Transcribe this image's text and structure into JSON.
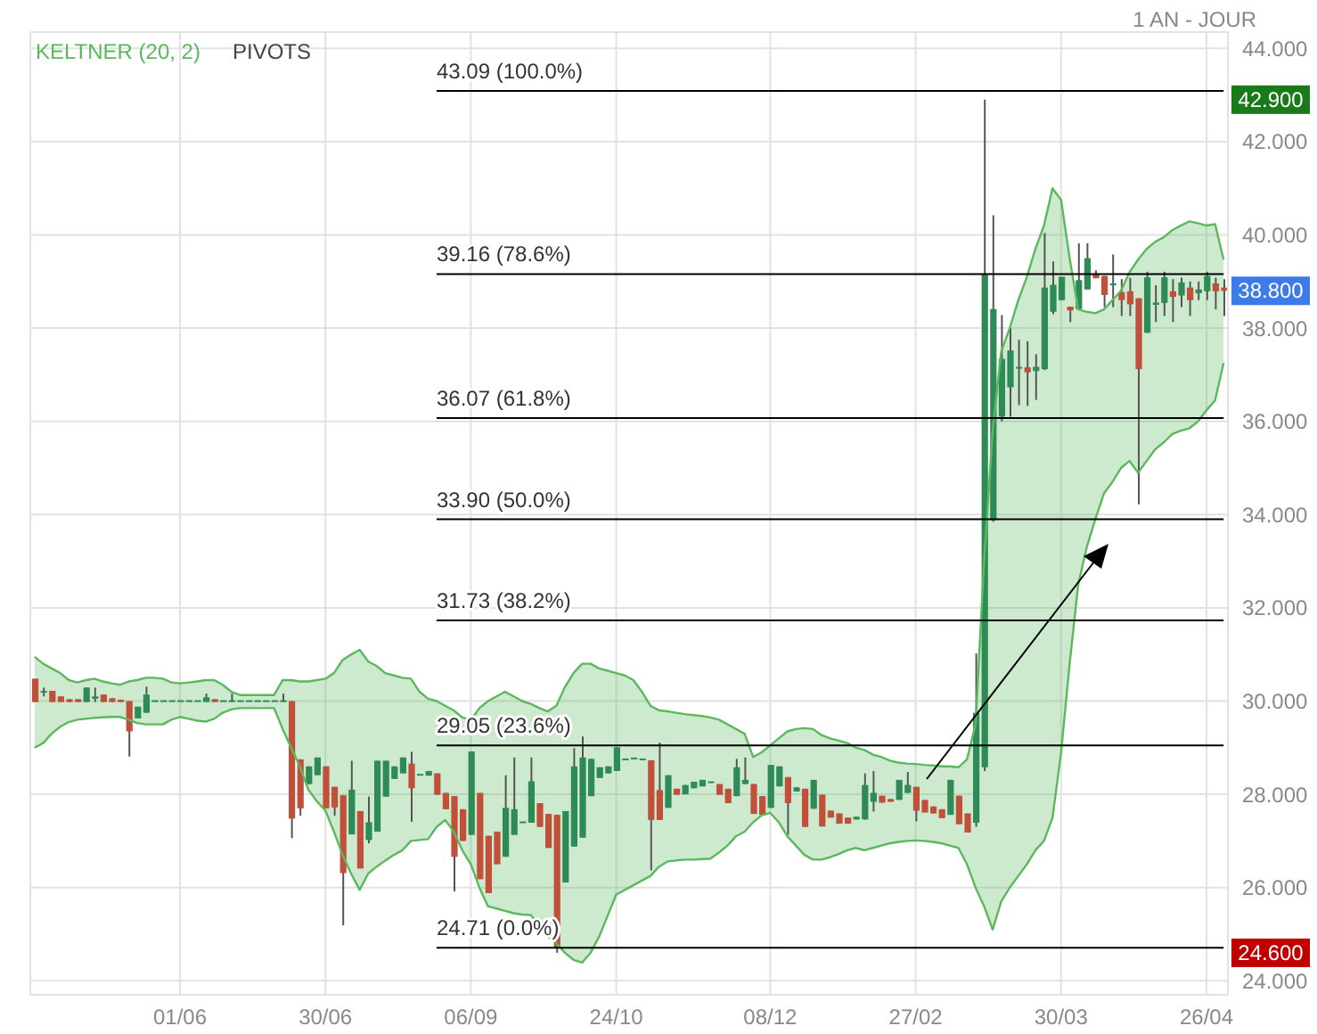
{
  "chart_data": {
    "type": "candlestick",
    "subtitle": "1 AN - JOUR",
    "grid": true,
    "legend": "top left",
    "colors": [
      "#c0503a",
      "#2e8b57",
      "#c0503a",
      "#c0503a",
      "#c0503a",
      "#c0503a",
      "#2e8b57",
      "#2e8b57",
      "#c0503a",
      "#c0503a",
      "#c0503a",
      "#c0503a",
      "#2e8b57",
      "#2e8b57",
      "#2e8b57",
      "#2e8b57",
      "#2e8b57",
      "#2e8b57",
      "#2e8b57",
      "#2e8b57",
      "#2e8b57",
      "#c0503a",
      "#2e8b57",
      "#2e8b57",
      "#2e8b57",
      "#2e8b57",
      "#2e8b57",
      "#2e8b57",
      "#2e8b57",
      "#2e8b57",
      "#c0503a",
      "#c0503a",
      "#2e8b57",
      "#2e8b57",
      "#c0503a",
      "#c0503a",
      "#c0503a",
      "#2e8b57",
      "#c0503a",
      "#2e8b57",
      "#2e8b57",
      "#2e8b57",
      "#2e8b57",
      "#2e8b57",
      "#c0503a",
      "#2e8b57",
      "#2e8b57",
      "#c0503a",
      "#c0503a",
      "#c0503a",
      "#c0503a",
      "#2e8b57",
      "#c0503a",
      "#c0503a",
      "#c0503a",
      "#2e8b57",
      "#2e8b57",
      "#2e8b57",
      "#2e8b57",
      "#c0503a",
      "#c0503a",
      "#c0503a",
      "#2e8b57",
      "#2e8b57",
      "#2e8b57",
      "#2e8b57",
      "#2e8b57",
      "#2e8b57",
      "#2e8b57",
      "#2e8b57",
      "#2e8b57",
      "#2e8b57",
      "#c0503a",
      "#c0503a",
      "#2e8b57",
      "#c0503a",
      "#2e8b57",
      "#2e8b57",
      "#2e8b57",
      "#2e8b57",
      "#c0503a",
      "#c0503a",
      "#2e8b57",
      "#2e8b57",
      "#c0503a",
      "#c0503a",
      "#2e8b57",
      "#2e8b57",
      "#c0503a",
      "#2e8b57",
      "#c0503a",
      "#2e8b57",
      "#c0503a",
      "#c0503a",
      "#c0503a",
      "#c0503a",
      "#2e8b57",
      "#2e8b57",
      "#2e8b57",
      "#c0503a",
      "#c0503a",
      "#2e8b57",
      "#2e8b57",
      "#c0503a",
      "#c0503a",
      "#c0503a",
      "#c0503a",
      "#2e8b57",
      "#c0503a",
      "#c0503a",
      "#2e8b57",
      "#2e8b57",
      "#2e8b57",
      "#2e8b57",
      "#2e8b57",
      "#2e8b57",
      "#c0503a",
      "#2e8b57",
      "#2e8b57",
      "#2e8b57",
      "#2e8b57",
      "#c0503a",
      "#2e8b57",
      "#2e8b57",
      "#c0503a",
      "#c0503a",
      "#2e8b57",
      "#c0503a",
      "#c0503a",
      "#c0503a",
      "#2e8b57",
      "#2e8b57",
      "#2e8b57",
      "#c0503a",
      "#2e8b57",
      "#c0503a",
      "#2e8b57",
      "#2e8b57",
      "#c0503a",
      "#c0503a"
    ],
    "categories": [
      null,
      null,
      null,
      null,
      null,
      null,
      null,
      null,
      null,
      null,
      null,
      null,
      null,
      null,
      null,
      null,
      null,
      "01/06",
      null,
      null,
      null,
      null,
      null,
      null,
      null,
      null,
      null,
      null,
      null,
      null,
      null,
      null,
      null,
      null,
      "30/06",
      null,
      null,
      null,
      null,
      null,
      null,
      null,
      null,
      null,
      null,
      null,
      null,
      null,
      null,
      null,
      null,
      "06/09",
      null,
      null,
      null,
      null,
      null,
      null,
      null,
      null,
      null,
      null,
      null,
      null,
      null,
      null,
      null,
      null,
      "24/10",
      null,
      null,
      null,
      null,
      null,
      null,
      null,
      null,
      null,
      null,
      null,
      null,
      null,
      null,
      null,
      null,
      null,
      "08/12",
      null,
      null,
      null,
      null,
      null,
      null,
      null,
      null,
      null,
      null,
      null,
      null,
      null,
      null,
      null,
      null,
      "27/02",
      null,
      null,
      null,
      null,
      null,
      null,
      null,
      null,
      null,
      null,
      null,
      null,
      null,
      null,
      null,
      null,
      "30/03",
      null,
      null,
      null,
      null,
      null,
      null,
      null,
      null,
      null,
      null,
      null,
      null,
      null,
      null,
      null,
      null,
      "26/04",
      null,
      null
    ],
    "ohlc": [
      [
        30.48,
        30.48,
        29.98,
        29.98
      ],
      [
        30.18,
        30.29,
        30.1,
        30.2
      ],
      [
        30.22,
        30.22,
        29.98,
        29.98
      ],
      [
        30.1,
        30.1,
        29.98,
        29.98
      ],
      [
        30.04,
        30.04,
        29.98,
        29.98
      ],
      [
        30.04,
        30.04,
        29.98,
        29.98
      ],
      [
        29.98,
        30.29,
        29.98,
        30.29
      ],
      [
        30.05,
        30.29,
        29.98,
        30.1
      ],
      [
        30.14,
        30.14,
        29.98,
        29.98
      ],
      [
        30.06,
        30.06,
        29.98,
        29.98
      ],
      [
        30.03,
        30.03,
        29.98,
        29.98
      ],
      [
        30.0,
        30.0,
        28.81,
        29.35
      ],
      [
        29.63,
        29.88,
        29.63,
        29.88
      ],
      [
        29.75,
        30.31,
        29.75,
        30.14
      ],
      [
        29.98,
        29.98,
        29.98,
        29.98
      ],
      [
        29.98,
        29.98,
        29.98,
        29.98
      ],
      [
        29.98,
        29.98,
        29.98,
        29.98
      ],
      [
        29.98,
        29.98,
        29.98,
        29.98
      ],
      [
        29.98,
        29.98,
        29.98,
        29.98
      ],
      [
        29.98,
        29.98,
        29.98,
        29.98
      ],
      [
        29.98,
        30.16,
        29.98,
        30.08
      ],
      [
        30.04,
        30.04,
        29.98,
        29.98
      ],
      [
        29.98,
        29.98,
        29.98,
        29.98
      ],
      [
        29.98,
        30.16,
        29.98,
        30.0
      ],
      [
        29.98,
        29.98,
        29.98,
        29.98
      ],
      [
        29.98,
        29.98,
        29.98,
        29.98
      ],
      [
        29.98,
        29.98,
        29.98,
        29.98
      ],
      [
        29.98,
        29.98,
        29.98,
        29.98
      ],
      [
        29.98,
        29.98,
        29.98,
        29.98
      ],
      [
        29.98,
        30.16,
        29.98,
        29.99
      ],
      [
        30.0,
        30.0,
        27.06,
        27.48
      ],
      [
        28.75,
        28.75,
        27.54,
        27.7
      ],
      [
        28.22,
        28.6,
        28.22,
        28.6
      ],
      [
        28.41,
        28.79,
        28.41,
        28.79
      ],
      [
        28.6,
        28.6,
        27.7,
        27.7
      ],
      [
        28.16,
        28.16,
        27.54,
        27.72
      ],
      [
        27.98,
        27.98,
        25.19,
        26.31
      ],
      [
        27.14,
        28.72,
        27.14,
        28.1
      ],
      [
        27.64,
        27.64,
        26.41,
        26.41
      ],
      [
        27.02,
        27.95,
        26.95,
        27.4
      ],
      [
        27.2,
        28.72,
        27.2,
        28.72
      ],
      [
        27.95,
        28.72,
        27.95,
        28.72
      ],
      [
        28.33,
        28.6,
        28.33,
        28.6
      ],
      [
        28.45,
        28.79,
        28.45,
        28.79
      ],
      [
        28.66,
        28.91,
        27.41,
        28.13
      ],
      [
        28.4,
        28.4,
        28.4,
        28.4
      ],
      [
        28.4,
        28.5,
        28.4,
        28.5
      ],
      [
        28.45,
        28.45,
        27.99,
        27.99
      ],
      [
        28.03,
        28.03,
        27.68,
        27.68
      ],
      [
        27.96,
        27.96,
        25.92,
        26.66
      ],
      [
        27.68,
        27.68,
        27.0,
        27.0
      ],
      [
        27.13,
        28.92,
        27.13,
        28.92
      ],
      [
        28.03,
        28.03,
        26.18,
        26.18
      ],
      [
        27.11,
        27.11,
        25.88,
        25.88
      ],
      [
        27.2,
        27.2,
        26.5,
        26.5
      ],
      [
        26.66,
        28.41,
        26.66,
        27.71
      ],
      [
        27.13,
        28.79,
        27.13,
        27.68
      ],
      [
        27.38,
        27.38,
        27.38,
        27.38
      ],
      [
        27.39,
        28.79,
        27.39,
        28.28
      ],
      [
        27.81,
        27.81,
        27.3,
        27.3
      ],
      [
        27.58,
        27.58,
        26.85,
        26.85
      ],
      [
        27.56,
        27.56,
        24.6,
        24.71
      ],
      [
        26.11,
        27.64,
        26.11,
        27.64
      ],
      [
        26.88,
        28.99,
        26.88,
        28.6
      ],
      [
        27.07,
        29.24,
        27.07,
        28.79
      ],
      [
        27.96,
        28.76,
        27.96,
        28.76
      ],
      [
        28.35,
        28.58,
        28.35,
        28.58
      ],
      [
        28.45,
        28.6,
        28.45,
        28.6
      ],
      [
        28.5,
        29.01,
        28.5,
        29.01
      ],
      [
        28.73,
        28.73,
        28.73,
        28.73
      ],
      [
        28.75,
        28.75,
        28.75,
        28.75
      ],
      [
        28.73,
        28.73,
        28.73,
        28.73
      ],
      [
        28.73,
        28.73,
        26.37,
        27.45
      ],
      [
        28.09,
        29.11,
        27.45,
        27.45
      ],
      [
        27.71,
        28.41,
        27.71,
        28.41
      ],
      [
        28.12,
        28.12,
        27.99,
        27.99
      ],
      [
        28.0,
        28.2,
        28.0,
        28.2
      ],
      [
        28.13,
        28.27,
        28.13,
        28.27
      ],
      [
        28.17,
        28.31,
        28.17,
        28.31
      ],
      [
        28.24,
        28.24,
        28.24,
        28.24
      ],
      [
        28.22,
        28.22,
        27.99,
        27.99
      ],
      [
        28.12,
        28.12,
        27.81,
        27.81
      ],
      [
        27.96,
        28.76,
        27.96,
        28.58
      ],
      [
        28.22,
        28.79,
        28.22,
        28.31
      ],
      [
        28.22,
        28.22,
        27.58,
        27.58
      ],
      [
        27.96,
        27.96,
        27.56,
        27.56
      ],
      [
        27.71,
        28.63,
        27.71,
        28.63
      ],
      [
        28.17,
        28.6,
        28.17,
        28.6
      ],
      [
        28.37,
        28.37,
        27.13,
        27.81
      ],
      [
        28.06,
        28.15,
        28.06,
        28.15
      ],
      [
        28.12,
        28.12,
        27.3,
        27.3
      ],
      [
        27.69,
        28.31,
        27.69,
        28.31
      ],
      [
        27.99,
        27.99,
        27.31,
        27.31
      ],
      [
        27.65,
        27.65,
        27.5,
        27.5
      ],
      [
        27.59,
        27.59,
        27.37,
        27.37
      ],
      [
        27.5,
        27.5,
        27.37,
        27.37
      ],
      [
        27.46,
        27.52,
        27.46,
        27.52
      ],
      [
        27.46,
        28.45,
        27.46,
        28.2
      ],
      [
        27.84,
        28.5,
        27.63,
        28.03
      ],
      [
        27.97,
        27.97,
        27.82,
        27.82
      ],
      [
        27.9,
        27.9,
        27.84,
        27.84
      ],
      [
        27.88,
        28.31,
        27.88,
        28.31
      ],
      [
        28.03,
        28.48,
        28.03,
        28.2
      ],
      [
        28.16,
        28.16,
        27.42,
        27.65
      ],
      [
        27.88,
        27.88,
        27.61,
        27.61
      ],
      [
        27.74,
        27.74,
        27.59,
        27.59
      ],
      [
        27.68,
        27.68,
        27.49,
        27.49
      ],
      [
        27.56,
        28.31,
        27.56,
        28.31
      ],
      [
        27.97,
        27.97,
        27.36,
        27.36
      ],
      [
        27.59,
        27.59,
        27.18,
        27.18
      ],
      [
        27.39,
        31.02,
        27.3,
        29.75
      ],
      [
        28.58,
        42.9,
        28.5,
        39.16
      ],
      [
        33.88,
        40.42,
        33.85,
        38.41
      ],
      [
        36.1,
        38.28,
        36.0,
        37.34
      ],
      [
        36.73,
        38.0,
        36.1,
        37.52
      ],
      [
        37.13,
        37.75,
        36.35,
        37.16
      ],
      [
        37.16,
        37.72,
        36.33,
        37.05
      ],
      [
        37.08,
        37.44,
        36.46,
        37.17
      ],
      [
        37.12,
        40.04,
        37.1,
        38.87
      ],
      [
        38.35,
        39.43,
        38.3,
        38.93
      ],
      [
        38.6,
        39.1,
        38.6,
        39.1
      ],
      [
        38.46,
        38.46,
        38.13,
        38.38
      ],
      [
        38.41,
        39.82,
        38.41,
        39.03
      ],
      [
        38.83,
        39.82,
        38.83,
        39.5
      ],
      [
        39.17,
        39.24,
        39.07,
        39.07
      ],
      [
        39.12,
        39.12,
        38.45,
        38.71
      ],
      [
        38.92,
        39.58,
        38.45,
        38.93
      ],
      [
        38.77,
        39.05,
        38.26,
        38.6
      ],
      [
        38.79,
        39.08,
        38.26,
        38.51
      ],
      [
        38.64,
        38.64,
        34.22,
        37.12
      ],
      [
        37.9,
        39.21,
        37.9,
        39.09
      ],
      [
        38.5,
        38.92,
        38.13,
        38.55
      ],
      [
        38.54,
        39.21,
        38.26,
        39.09
      ],
      [
        38.79,
        39.05,
        38.13,
        38.67
      ],
      [
        38.7,
        39.08,
        38.45,
        38.98
      ],
      [
        38.87,
        39.0,
        38.26,
        38.6
      ],
      [
        38.75,
        39.0,
        38.6,
        38.83
      ],
      [
        38.79,
        39.21,
        38.6,
        39.12
      ],
      [
        38.96,
        39.08,
        38.4,
        38.79
      ],
      [
        38.87,
        39.05,
        38.26,
        38.8
      ]
    ],
    "series": [
      {
        "name": "KELTNER (20, 2)",
        "type": "line",
        "color": "#5cb85c",
        "values": [
          30.95,
          30.8,
          30.7,
          30.6,
          30.45,
          30.4,
          30.45,
          30.48,
          30.42,
          30.38,
          30.35,
          30.42,
          30.45,
          30.5,
          30.5,
          30.48,
          30.4,
          30.38,
          30.4,
          30.42,
          30.45,
          30.45,
          30.35,
          30.2,
          30.13,
          30.13,
          30.13,
          30.13,
          30.13,
          30.45,
          30.45,
          30.42,
          30.42,
          30.45,
          30.48,
          30.6,
          30.88,
          31.0,
          31.1,
          30.85,
          30.75,
          30.6,
          30.55,
          30.5,
          30.48,
          30.2,
          30.05,
          30.0,
          29.9,
          29.8,
          29.65,
          29.6,
          29.85,
          30.0,
          30.1,
          30.2,
          30.1,
          30.0,
          29.94,
          29.85,
          29.78,
          29.9,
          30.3,
          30.6,
          30.8,
          30.8,
          30.7,
          30.65,
          30.6,
          30.55,
          30.45,
          30.2,
          29.9,
          29.8,
          29.78,
          29.75,
          29.72,
          29.7,
          29.68,
          29.65,
          29.6,
          29.5,
          29.4,
          29.3,
          28.8,
          28.9,
          29.05,
          29.2,
          29.35,
          29.4,
          29.42,
          29.4,
          29.27,
          29.2,
          29.15,
          29.1,
          29.0,
          28.95,
          28.85,
          28.8,
          28.72,
          28.68,
          28.66,
          28.65,
          28.63,
          28.62,
          28.6,
          28.6,
          28.58,
          28.75,
          29.5,
          33.0,
          35.8,
          37.5,
          38.0,
          38.6,
          39.1,
          39.7,
          40.2,
          41.0,
          40.75,
          39.5,
          38.4,
          38.35,
          38.32,
          38.4,
          38.6,
          38.8,
          39.2,
          39.47,
          39.7,
          39.85,
          39.95,
          40.1,
          40.2,
          40.29,
          40.25,
          40.2,
          40.23,
          39.47
        ],
        "upper": [
          30.95,
          30.8,
          30.7,
          30.6,
          30.45,
          30.4,
          30.45,
          30.48,
          30.42,
          30.38,
          30.35,
          30.42,
          30.45,
          30.5,
          30.5,
          30.48,
          30.4,
          30.38,
          30.4,
          30.42,
          30.45,
          30.45,
          30.35,
          30.2,
          30.13,
          30.13,
          30.13,
          30.13,
          30.13,
          30.45,
          30.45,
          30.42,
          30.42,
          30.45,
          30.48,
          30.6,
          30.88,
          31.0,
          31.1,
          30.85,
          30.75,
          30.6,
          30.55,
          30.5,
          30.48,
          30.2,
          30.05,
          30.0,
          29.9,
          29.8,
          29.65,
          29.6,
          29.85,
          30.0,
          30.1,
          30.2,
          30.1,
          30.0,
          29.94,
          29.85,
          29.78,
          29.9,
          30.3,
          30.6,
          30.8,
          30.8,
          30.7,
          30.65,
          30.6,
          30.55,
          30.45,
          30.2,
          29.9,
          29.8,
          29.78,
          29.75,
          29.72,
          29.7,
          29.68,
          29.65,
          29.6,
          29.5,
          29.4,
          29.3,
          28.8,
          28.9,
          29.05,
          29.2,
          29.35,
          29.4,
          29.42,
          29.4,
          29.27,
          29.2,
          29.15,
          29.1,
          29.0,
          28.95,
          28.85,
          28.8,
          28.72,
          28.68,
          28.66,
          28.65,
          28.63,
          28.62,
          28.6,
          28.6,
          28.58,
          28.75,
          29.5,
          33.0,
          35.8,
          37.5,
          38.0,
          38.6,
          39.1,
          39.7,
          40.2,
          41.0,
          40.75,
          39.5,
          38.4,
          38.35,
          38.32,
          38.4,
          38.6,
          38.8,
          39.2,
          39.47,
          39.7,
          39.85,
          39.95,
          40.1,
          40.2,
          40.29,
          40.25,
          40.2,
          40.23,
          39.47
        ],
        "lower": [
          29.0,
          29.1,
          29.3,
          29.45,
          29.55,
          29.6,
          29.62,
          29.64,
          29.65,
          29.66,
          29.66,
          29.6,
          29.53,
          29.5,
          29.5,
          29.5,
          29.6,
          29.66,
          29.62,
          29.58,
          29.56,
          29.62,
          29.75,
          29.82,
          29.85,
          29.85,
          29.85,
          29.85,
          29.85,
          29.4,
          29.0,
          28.6,
          28.1,
          27.85,
          27.65,
          27.2,
          26.7,
          26.3,
          25.95,
          26.3,
          26.45,
          26.58,
          26.7,
          26.8,
          27.0,
          27.02,
          27.04,
          27.3,
          27.45,
          27.2,
          26.8,
          26.5,
          26.0,
          25.6,
          25.55,
          25.5,
          25.45,
          25.42,
          25.41,
          25.2,
          24.95,
          24.8,
          24.6,
          24.45,
          24.39,
          24.6,
          24.95,
          25.4,
          25.85,
          25.95,
          26.05,
          26.15,
          26.25,
          26.45,
          26.56,
          26.58,
          26.6,
          26.6,
          26.61,
          26.62,
          26.75,
          26.9,
          27.1,
          27.2,
          27.4,
          27.55,
          27.6,
          27.4,
          27.1,
          26.9,
          26.7,
          26.6,
          26.6,
          26.65,
          26.72,
          26.8,
          26.85,
          26.8,
          26.85,
          26.9,
          26.95,
          26.98,
          27.0,
          27.01,
          27.0,
          26.98,
          26.95,
          26.9,
          26.85,
          26.5,
          26.0,
          25.6,
          25.1,
          25.7,
          26.0,
          26.25,
          26.5,
          26.8,
          27.0,
          27.5,
          28.9,
          30.8,
          32.5,
          33.3,
          33.9,
          34.45,
          34.7,
          35.0,
          35.15,
          34.9,
          35.15,
          35.4,
          35.55,
          35.73,
          35.8,
          35.85,
          36.0,
          36.24,
          36.45,
          37.25
        ]
      },
      {
        "type": "line",
        "color": "#5cb85c",
        "values": [
          29.0,
          29.1,
          29.3,
          29.45,
          29.55,
          29.6,
          29.62,
          29.64,
          29.65,
          29.66,
          29.66,
          29.6,
          29.53,
          29.5,
          29.5,
          29.5,
          29.6,
          29.66,
          29.62,
          29.58,
          29.56,
          29.62,
          29.75,
          29.82,
          29.85,
          29.85,
          29.85,
          29.85,
          29.85,
          29.4,
          29.0,
          28.6,
          28.1,
          27.85,
          27.65,
          27.2,
          26.7,
          26.3,
          25.95,
          26.3,
          26.45,
          26.58,
          26.7,
          26.8,
          27.0,
          27.02,
          27.04,
          27.3,
          27.45,
          27.2,
          26.8,
          26.5,
          26.0,
          25.6,
          25.55,
          25.5,
          25.45,
          25.42,
          25.41,
          25.2,
          24.95,
          24.8,
          24.6,
          24.45,
          24.39,
          24.6,
          24.95,
          25.4,
          25.85,
          25.95,
          26.05,
          26.15,
          26.25,
          26.45,
          26.56,
          26.58,
          26.6,
          26.6,
          26.61,
          26.62,
          26.75,
          26.9,
          27.1,
          27.2,
          27.4,
          27.55,
          27.6,
          27.4,
          27.1,
          26.9,
          26.7,
          26.6,
          26.6,
          26.65,
          26.72,
          26.8,
          26.85,
          26.8,
          26.85,
          26.9,
          26.95,
          26.98,
          27.0,
          27.01,
          27.0,
          26.98,
          26.95,
          26.9,
          26.85,
          26.5,
          26.0,
          25.6,
          25.1,
          25.7,
          26.0,
          26.25,
          26.5,
          26.8,
          27.0,
          27.5,
          28.9,
          30.8,
          32.5,
          33.3,
          33.9,
          34.45,
          34.7,
          35.0,
          35.15,
          34.9,
          35.15,
          35.4,
          35.55,
          35.73,
          35.8,
          35.85,
          36.0,
          36.24,
          36.45,
          37.25
        ]
      }
    ],
    "ylim": [
      23.7,
      44.35
    ],
    "yticks": [
      {
        "value": 24,
        "label": "24.000"
      },
      {
        "value": 26,
        "label": "26.000"
      },
      {
        "value": 28,
        "label": "28.000"
      },
      {
        "value": 30,
        "label": "30.000"
      },
      {
        "value": 32,
        "label": "32.000"
      },
      {
        "value": 34,
        "label": "34.000"
      },
      {
        "value": 36,
        "label": "36.000"
      },
      {
        "value": 38,
        "label": "38.000"
      },
      {
        "value": 40,
        "label": "40.000"
      },
      {
        "value": 42,
        "label": "42.000"
      },
      {
        "value": 44,
        "label": "44.000"
      }
    ],
    "ref_lines": [
      {
        "axis": "y",
        "value": 43.09,
        "label": "43.09  (100.0%)",
        "color": "#000000"
      },
      {
        "axis": "y",
        "value": 39.16,
        "label": "39.16  (78.6%)",
        "color": "#000000"
      },
      {
        "axis": "y",
        "value": 36.07,
        "label": "36.07  (61.8%)",
        "color": "#000000"
      },
      {
        "axis": "y",
        "value": 33.9,
        "label": "33.90  (50.0%)",
        "color": "#000000"
      },
      {
        "axis": "y",
        "value": 31.73,
        "label": "31.73  (38.2%)",
        "color": "#000000"
      },
      {
        "axis": "y",
        "value": 29.05,
        "label": "29.05  (23.6%)",
        "color": "#000000"
      },
      {
        "axis": "y",
        "value": 24.71,
        "label": "24.71  (0.0%)",
        "color": "#000000"
      }
    ],
    "annotations": [
      "PIVOTS",
      {
        "text": "42.900",
        "y": 42.9
      },
      {
        "text": "38.800",
        "y": 38.8
      },
      {
        "text": "24.600",
        "y": 24.6
      }
    ]
  }
}
